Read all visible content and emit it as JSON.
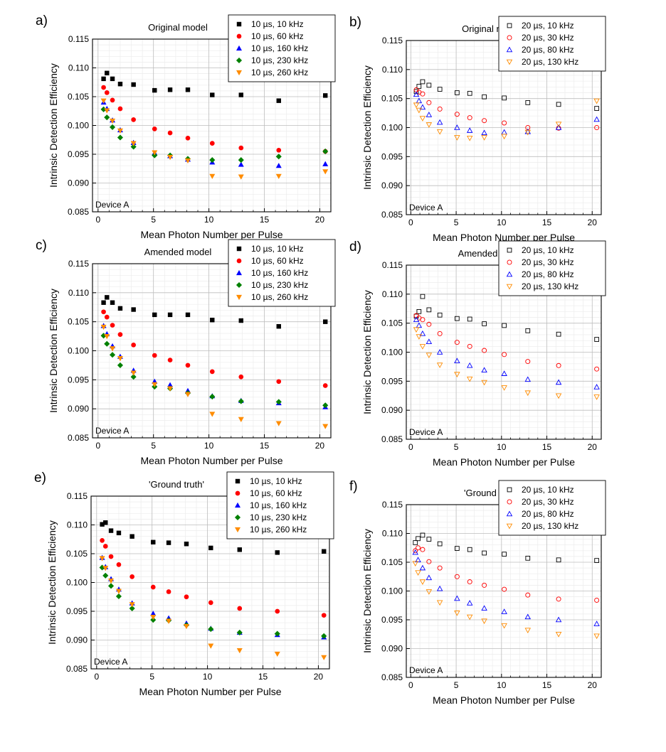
{
  "figure": {
    "xlabel": "Mean Photon Number per Pulse",
    "ylabel": "Intrinsic Detection Efficiency",
    "device_label": "Device A"
  },
  "chart_data": [
    {
      "id": "a",
      "panel_label": "a)",
      "title": "Original model",
      "type": "scatter",
      "xlabel": "Mean Photon Number per Pulse",
      "ylabel": "Intrinsic Detection Efficiency",
      "xlim": [
        -0.5,
        21
      ],
      "ylim": [
        0.085,
        0.115
      ],
      "xticks": [
        0,
        5,
        10,
        15,
        20
      ],
      "yticks": [
        "0.085",
        "0.090",
        "0.095",
        "0.100",
        "0.105",
        "0.110",
        "0.115"
      ],
      "grid": true,
      "legend_position": "top-right",
      "annotation": "Device A",
      "x": [
        0.5,
        0.8,
        1.3,
        2.0,
        3.2,
        5.1,
        6.5,
        8.1,
        10.3,
        12.9,
        16.3,
        20.5
      ],
      "series": [
        {
          "name": "10 µs, 10 kHz",
          "marker": "square",
          "color": "#000000",
          "fill": true,
          "values": [
            0.1081,
            0.1091,
            0.1081,
            0.1072,
            0.1071,
            0.1061,
            0.1062,
            0.1062,
            0.1053,
            0.1053,
            0.1043,
            0.1052
          ]
        },
        {
          "name": "10 µs, 60 kHz",
          "marker": "circle",
          "color": "#ff0000",
          "fill": true,
          "values": [
            0.1066,
            0.1057,
            0.1044,
            0.1029,
            0.101,
            0.0994,
            0.0987,
            0.0978,
            0.0969,
            0.0961,
            0.0957,
            0.0955
          ]
        },
        {
          "name": "10 µs, 160 kHz",
          "marker": "triangle-up",
          "color": "#0000ff",
          "fill": true,
          "values": [
            0.104,
            0.1029,
            0.1009,
            0.0992,
            0.097,
            0.0952,
            0.0947,
            0.0941,
            0.0936,
            0.0932,
            0.093,
            0.0933
          ]
        },
        {
          "name": "10 µs, 230 kHz",
          "marker": "diamond",
          "color": "#008000",
          "fill": true,
          "values": [
            0.1028,
            0.1014,
            0.0997,
            0.0979,
            0.0963,
            0.0948,
            0.0948,
            0.0942,
            0.094,
            0.094,
            0.0946,
            0.0955
          ]
        },
        {
          "name": "10 µs, 260 kHz",
          "marker": "triangle-down",
          "color": "#ff8c00",
          "fill": true,
          "values": [
            0.1043,
            0.1026,
            0.1008,
            0.0991,
            0.0969,
            0.0953,
            0.0945,
            0.0939,
            0.0912,
            0.0911,
            0.0912,
            0.092
          ]
        }
      ]
    },
    {
      "id": "b",
      "panel_label": "b)",
      "title": "Original model",
      "type": "scatter",
      "xlabel": "Mean Photon Number per Pulse",
      "ylabel": "Intrinsic Detection Efficiency",
      "xlim": [
        -0.5,
        21
      ],
      "ylim": [
        0.085,
        0.115
      ],
      "xticks": [
        0,
        5,
        10,
        15,
        20
      ],
      "yticks": [
        "0.085",
        "0.090",
        "0.095",
        "0.100",
        "0.105",
        "0.110",
        "0.115"
      ],
      "grid": true,
      "legend_position": "top-right",
      "annotation": "Device A",
      "x": [
        0.6,
        0.9,
        1.3,
        2.0,
        3.2,
        5.1,
        6.5,
        8.1,
        10.3,
        12.9,
        16.3,
        20.5
      ],
      "series": [
        {
          "name": "20 µs, 10 kHz",
          "marker": "square",
          "color": "#000000",
          "fill": false,
          "values": [
            0.1062,
            0.1071,
            0.1079,
            0.1073,
            0.1066,
            0.106,
            0.1059,
            0.1053,
            0.1051,
            0.1043,
            0.104,
            0.1033
          ]
        },
        {
          "name": "20 µs, 30 kHz",
          "marker": "circle",
          "color": "#ff0000",
          "fill": false,
          "values": [
            0.1065,
            0.1061,
            0.1058,
            0.1043,
            0.1032,
            0.1023,
            0.1017,
            0.1012,
            0.1008,
            0.1,
            0.0999,
            0.1
          ]
        },
        {
          "name": "20 µs, 80 kHz",
          "marker": "triangle-up",
          "color": "#0000ff",
          "fill": false,
          "values": [
            0.1057,
            0.1046,
            0.1035,
            0.1022,
            0.1009,
            0.1,
            0.0995,
            0.0991,
            0.0992,
            0.0993,
            0.1,
            0.1014
          ]
        },
        {
          "name": "20 µs, 130 kHz",
          "marker": "triangle-down",
          "color": "#ff8c00",
          "fill": false,
          "values": [
            0.1039,
            0.103,
            0.1016,
            0.1005,
            0.0993,
            0.0983,
            0.0982,
            0.0983,
            0.0985,
            0.0992,
            0.1006,
            0.1046
          ]
        }
      ]
    },
    {
      "id": "c",
      "panel_label": "c)",
      "title": "Amended model",
      "type": "scatter",
      "xlabel": "Mean Photon Number per Pulse",
      "ylabel": "Intrinsic Detection Efficiency",
      "xlim": [
        -0.5,
        21
      ],
      "ylim": [
        0.085,
        0.115
      ],
      "xticks": [
        0,
        5,
        10,
        15,
        20
      ],
      "yticks": [
        "0.085",
        "0.090",
        "0.095",
        "0.100",
        "0.105",
        "0.110",
        "0.115"
      ],
      "grid": true,
      "legend_position": "top-right",
      "annotation": "Device A",
      "x": [
        0.5,
        0.8,
        1.3,
        2.0,
        3.2,
        5.1,
        6.5,
        8.1,
        10.3,
        12.9,
        16.3,
        20.5
      ],
      "series": [
        {
          "name": "10 µs, 10 kHz",
          "marker": "square",
          "color": "#000000",
          "fill": true,
          "values": [
            0.1083,
            0.1092,
            0.1083,
            0.1073,
            0.1071,
            0.1062,
            0.1062,
            0.1062,
            0.1053,
            0.1052,
            0.1042,
            0.105
          ]
        },
        {
          "name": "10 µs, 60 kHz",
          "marker": "circle",
          "color": "#ff0000",
          "fill": true,
          "values": [
            0.1067,
            0.1058,
            0.1044,
            0.1028,
            0.101,
            0.0992,
            0.0984,
            0.0975,
            0.0964,
            0.0955,
            0.0947,
            0.094
          ]
        },
        {
          "name": "10 µs, 160 kHz",
          "marker": "triangle-up",
          "color": "#0000ff",
          "fill": true,
          "values": [
            0.1043,
            0.1029,
            0.1008,
            0.099,
            0.0966,
            0.0947,
            0.0941,
            0.0931,
            0.0922,
            0.0914,
            0.091,
            0.0903
          ]
        },
        {
          "name": "10 µs, 230 kHz",
          "marker": "diamond",
          "color": "#008000",
          "fill": true,
          "values": [
            0.1026,
            0.1012,
            0.0993,
            0.0975,
            0.0955,
            0.0938,
            0.0935,
            0.0927,
            0.0921,
            0.0913,
            0.0912,
            0.0906
          ]
        },
        {
          "name": "10 µs, 260 kHz",
          "marker": "triangle-down",
          "color": "#ff8c00",
          "fill": true,
          "values": [
            0.1041,
            0.1025,
            0.1004,
            0.0987,
            0.0962,
            0.0942,
            0.0935,
            0.0925,
            0.0891,
            0.0882,
            0.0875,
            0.087
          ]
        }
      ]
    },
    {
      "id": "d",
      "panel_label": "d)",
      "title": "Amended model",
      "type": "scatter",
      "xlabel": "Mean Photon Number per Pulse",
      "ylabel": "Intrinsic Detection Efficiency",
      "xlim": [
        -0.5,
        21
      ],
      "ylim": [
        0.085,
        0.115
      ],
      "xticks": [
        0,
        5,
        10,
        15,
        20
      ],
      "yticks": [
        "0.085",
        "0.090",
        "0.095",
        "0.100",
        "0.105",
        "0.110",
        "0.115"
      ],
      "grid": true,
      "legend_position": "top-right",
      "annotation": "Device A",
      "x": [
        0.6,
        0.9,
        1.3,
        2.0,
        3.2,
        5.1,
        6.5,
        8.1,
        10.3,
        12.9,
        16.3,
        20.5
      ],
      "series": [
        {
          "name": "20 µs, 10 kHz",
          "marker": "square",
          "color": "#000000",
          "fill": false,
          "values": [
            0.1062,
            0.107,
            0.1096,
            0.1073,
            0.1064,
            0.1058,
            0.1057,
            0.1049,
            0.1046,
            0.1037,
            0.1031,
            0.1022
          ]
        },
        {
          "name": "20 µs, 30 kHz",
          "marker": "circle",
          "color": "#ff0000",
          "fill": false,
          "values": [
            0.1063,
            0.1059,
            0.1056,
            0.1048,
            0.1032,
            0.1017,
            0.101,
            0.1003,
            0.0996,
            0.0984,
            0.0977,
            0.0971
          ]
        },
        {
          "name": "20 µs, 80 kHz",
          "marker": "triangle-up",
          "color": "#0000ff",
          "fill": false,
          "values": [
            0.1056,
            0.1046,
            0.1032,
            0.1018,
            0.1,
            0.0985,
            0.0977,
            0.0969,
            0.0963,
            0.0953,
            0.0948,
            0.094
          ]
        },
        {
          "name": "20 µs, 130 kHz",
          "marker": "triangle-down",
          "color": "#ff8c00",
          "fill": false,
          "values": [
            0.1039,
            0.1027,
            0.101,
            0.0995,
            0.0978,
            0.0962,
            0.0954,
            0.0948,
            0.0939,
            0.093,
            0.0925,
            0.0923
          ]
        }
      ]
    },
    {
      "id": "e",
      "panel_label": "e)",
      "title": "'Ground truth'",
      "type": "scatter",
      "xlabel": "Mean Photon Number per Pulse",
      "ylabel": "Intrinsic Detection Efficiency",
      "xlim": [
        -0.5,
        21
      ],
      "ylim": [
        0.085,
        0.115
      ],
      "xticks": [
        0,
        5,
        10,
        15,
        20
      ],
      "yticks": [
        "0.085",
        "0.090",
        "0.095",
        "0.100",
        "0.105",
        "0.110",
        "0.115"
      ],
      "grid": true,
      "legend_position": "top-right",
      "annotation": "Device A",
      "x": [
        0.5,
        0.8,
        1.3,
        2.0,
        3.2,
        5.1,
        6.5,
        8.1,
        10.3,
        12.9,
        16.3,
        20.5
      ],
      "series": [
        {
          "name": "10 µs, 10 kHz",
          "marker": "square",
          "color": "#000000",
          "fill": true,
          "values": [
            0.1101,
            0.1104,
            0.109,
            0.1086,
            0.108,
            0.107,
            0.1069,
            0.1067,
            0.106,
            0.1057,
            0.1052,
            0.1054
          ]
        },
        {
          "name": "10 µs, 60 kHz",
          "marker": "circle",
          "color": "#ff0000",
          "fill": true,
          "values": [
            0.1073,
            0.1063,
            0.1045,
            0.1031,
            0.101,
            0.0992,
            0.0984,
            0.0975,
            0.0965,
            0.0955,
            0.095,
            0.0943
          ]
        },
        {
          "name": "10 µs, 160 kHz",
          "marker": "triangle-up",
          "color": "#0000ff",
          "fill": true,
          "values": [
            0.1043,
            0.1027,
            0.1006,
            0.0988,
            0.0964,
            0.0946,
            0.0938,
            0.0929,
            0.092,
            0.0913,
            0.0909,
            0.0905
          ]
        },
        {
          "name": "10 µs, 230 kHz",
          "marker": "diamond",
          "color": "#008000",
          "fill": true,
          "values": [
            0.1026,
            0.1012,
            0.0994,
            0.0976,
            0.0955,
            0.0935,
            0.0934,
            0.0926,
            0.0919,
            0.0913,
            0.0911,
            0.0907
          ]
        },
        {
          "name": "10 µs, 260 kHz",
          "marker": "triangle-down",
          "color": "#ff8c00",
          "fill": true,
          "values": [
            0.1042,
            0.1025,
            0.1003,
            0.0985,
            0.0962,
            0.094,
            0.0933,
            0.0924,
            0.089,
            0.0882,
            0.0876,
            0.087
          ]
        }
      ]
    },
    {
      "id": "f",
      "panel_label": "f)",
      "title": "'Ground truth'",
      "type": "scatter",
      "xlabel": "Mean Photon Number per Pulse",
      "ylabel": "Intrinsic Detection Efficiency",
      "xlim": [
        -0.5,
        21
      ],
      "ylim": [
        0.085,
        0.115
      ],
      "xticks": [
        0,
        5,
        10,
        15,
        20
      ],
      "yticks": [
        "0.085",
        "0.090",
        "0.095",
        "0.100",
        "0.105",
        "0.110",
        "0.115"
      ],
      "grid": true,
      "legend_position": "top-right",
      "annotation": "Device A",
      "x": [
        0.5,
        0.8,
        1.3,
        2.0,
        3.2,
        5.1,
        6.5,
        8.1,
        10.3,
        12.9,
        16.3,
        20.5
      ],
      "series": [
        {
          "name": "20 µs, 10 kHz",
          "marker": "square",
          "color": "#000000",
          "fill": false,
          "values": [
            0.1084,
            0.1091,
            0.1097,
            0.109,
            0.1082,
            0.1074,
            0.1072,
            0.1066,
            0.1064,
            0.1057,
            0.1054,
            0.1053
          ]
        },
        {
          "name": "20 µs, 30 kHz",
          "marker": "circle",
          "color": "#ff0000",
          "fill": false,
          "values": [
            0.107,
            0.1075,
            0.1072,
            0.1051,
            0.104,
            0.1025,
            0.1016,
            0.101,
            0.1003,
            0.0993,
            0.0986,
            0.0984
          ]
        },
        {
          "name": "20 µs, 80 kHz",
          "marker": "triangle-up",
          "color": "#0000ff",
          "fill": false,
          "values": [
            0.1067,
            0.1054,
            0.104,
            0.1023,
            0.1004,
            0.0987,
            0.0979,
            0.097,
            0.0964,
            0.0955,
            0.095,
            0.0943
          ]
        },
        {
          "name": "20 µs, 130 kHz",
          "marker": "triangle-down",
          "color": "#ff8c00",
          "fill": false,
          "values": [
            0.1048,
            0.1032,
            0.1016,
            0.0999,
            0.098,
            0.0962,
            0.0955,
            0.0948,
            0.094,
            0.0932,
            0.0925,
            0.0922
          ]
        }
      ]
    }
  ]
}
